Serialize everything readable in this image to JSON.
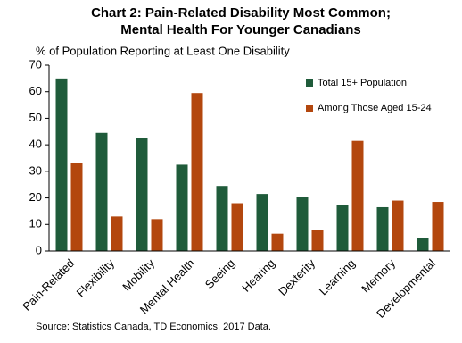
{
  "chart_data": {
    "type": "bar",
    "title": [
      "Chart 2: Pain-Related Disability Most Common;",
      "Mental Health For Younger Canadians"
    ],
    "y_label": "% of Population Reporting at Least One Disability",
    "source": "Source: Statistics Canada, TD Economics. 2017 Data.",
    "categories": [
      "Pain-Related",
      "Flexibility",
      "Mobility",
      "Mental Health",
      "Seeing",
      "Hearing",
      "Dexterity",
      "Learning",
      "Memory",
      "Developmental"
    ],
    "series": [
      {
        "name": "Total 15+ Population",
        "color": "#1f5b3a",
        "values": [
          65,
          44.5,
          42.5,
          32.5,
          24.5,
          21.5,
          20.5,
          17.5,
          16.5,
          5
        ]
      },
      {
        "name": "Among Those Aged 15-24",
        "color": "#b3470e",
        "values": [
          33,
          13,
          12,
          59.5,
          18,
          6.5,
          8,
          41.5,
          19,
          18.5
        ]
      }
    ],
    "ylim": [
      0,
      70
    ],
    "yticks": [
      0,
      10,
      20,
      30,
      40,
      50,
      60,
      70
    ],
    "grid": false,
    "legend": "upper right"
  }
}
